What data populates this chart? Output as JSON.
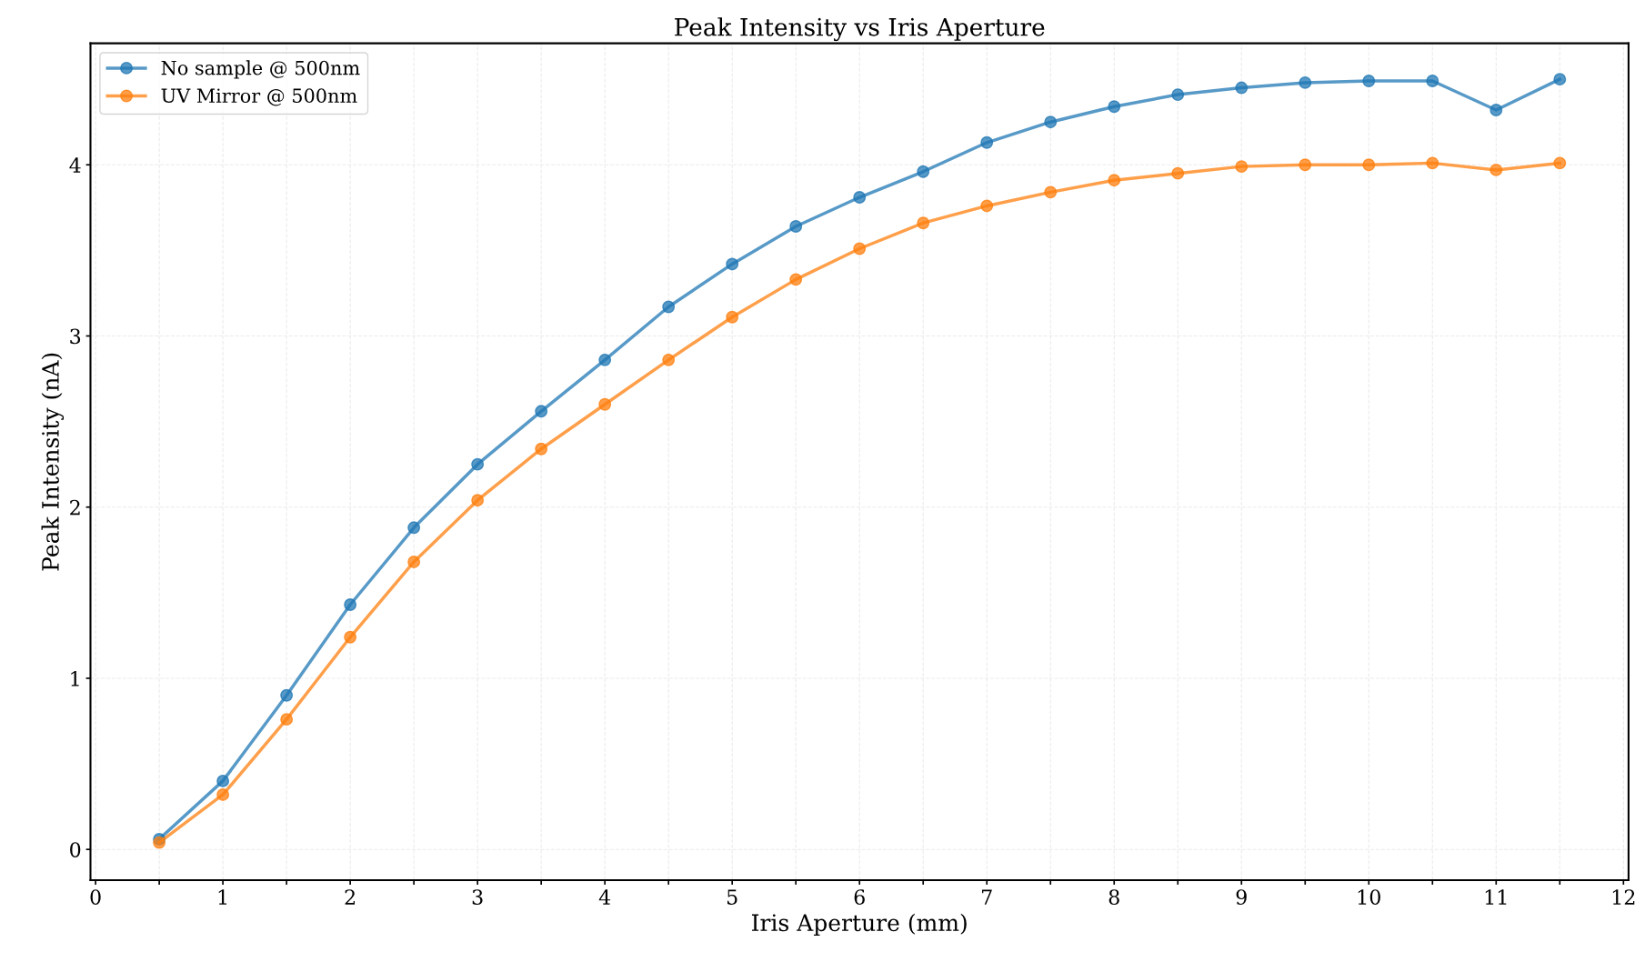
{
  "chart_data": {
    "type": "line",
    "title": "Peak Intensity vs Iris Aperture",
    "xlabel": "Iris Aperture (mm)",
    "ylabel": "Peak Intensity (nA)",
    "x": [
      0.5,
      1,
      1.5,
      2,
      2.5,
      3,
      3.5,
      4,
      4.5,
      5,
      5.5,
      6,
      6.5,
      7,
      7.5,
      8,
      8.5,
      9,
      9.5,
      10,
      10.5,
      11,
      11.5
    ],
    "series": [
      {
        "name": "No sample @ 500nm",
        "color": "#1f77b4",
        "values": [
          0.06,
          0.4,
          0.9,
          1.43,
          1.88,
          2.25,
          2.56,
          2.86,
          3.17,
          3.42,
          3.64,
          3.81,
          3.96,
          4.13,
          4.25,
          4.34,
          4.41,
          4.45,
          4.48,
          4.49,
          4.49,
          4.32,
          4.5
        ]
      },
      {
        "name": "UV Mirror @ 500nm",
        "color": "#ff7f0e",
        "values": [
          0.04,
          0.32,
          0.76,
          1.24,
          1.68,
          2.04,
          2.34,
          2.6,
          2.86,
          3.11,
          3.33,
          3.51,
          3.66,
          3.76,
          3.84,
          3.91,
          3.95,
          3.99,
          4.0,
          4.0,
          4.01,
          3.97,
          4.01
        ]
      }
    ],
    "xlim": [
      -0.04,
      12.04
    ],
    "ylim": [
      -0.18,
      4.71
    ],
    "xticks": [
      0,
      {
        "value": 0.5,
        "label": null
      },
      1,
      {
        "value": 1.5,
        "label": null
      },
      2,
      {
        "value": 2.5,
        "label": null
      },
      3,
      {
        "value": 3.5,
        "label": null
      },
      4,
      {
        "value": 4.5,
        "label": null
      },
      5,
      {
        "value": 5.5,
        "label": null
      },
      6,
      {
        "value": 6.5,
        "label": null
      },
      7,
      {
        "value": 7.5,
        "label": null
      },
      8,
      {
        "value": 8.5,
        "label": null
      },
      9,
      {
        "value": 9.5,
        "label": null
      },
      10,
      {
        "value": 10.5,
        "label": null
      },
      11,
      {
        "value": 11.5,
        "label": null
      },
      12
    ],
    "yticks": [
      0,
      1,
      2,
      3,
      4
    ],
    "grid": true,
    "legend": "top left",
    "marker": "circle",
    "line_style": "solid"
  }
}
